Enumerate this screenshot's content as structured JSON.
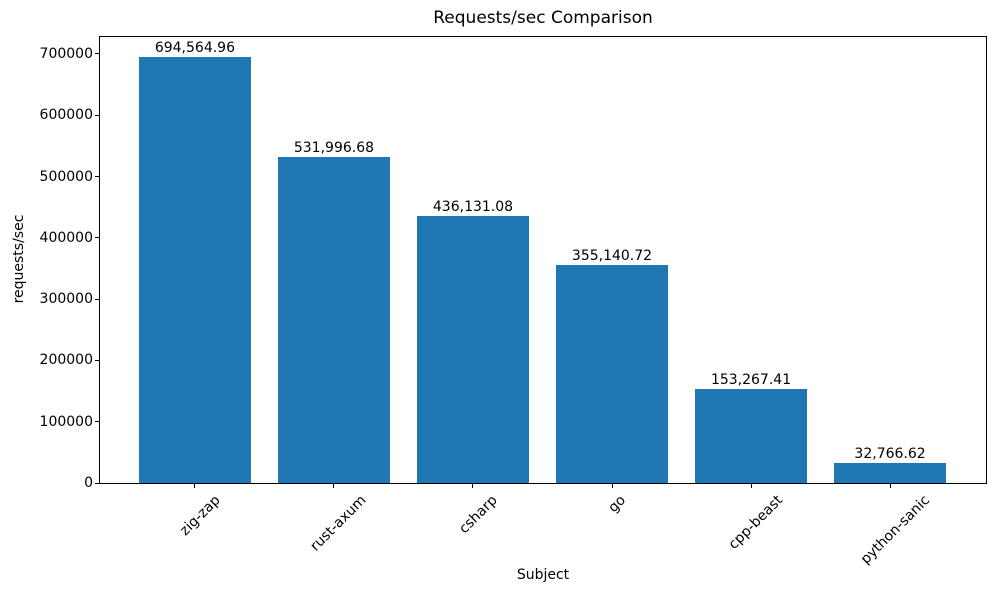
{
  "chart_data": {
    "type": "bar",
    "title": "Requests/sec Comparison",
    "xlabel": "Subject",
    "ylabel": "requests/sec",
    "categories": [
      "zig-zap",
      "rust-axum",
      "csharp",
      "go",
      "cpp-beast",
      "python-sanic"
    ],
    "values": [
      694564.96,
      531996.68,
      436131.08,
      355140.72,
      153267.41,
      32766.62
    ],
    "value_labels": [
      "694,564.96",
      "531,996.68",
      "436,131.08",
      "355,140.72",
      "153,267.41",
      "32,766.62"
    ],
    "yticks": [
      0,
      100000,
      200000,
      300000,
      400000,
      500000,
      600000,
      700000
    ],
    "ylim": [
      0,
      729293
    ],
    "x_tick_rotation": 45,
    "grid": false,
    "legend": "none",
    "bar_color": "#1f77b4",
    "background_color": "#ffffff",
    "text_color": "#000000",
    "spine_color": "#000000"
  }
}
